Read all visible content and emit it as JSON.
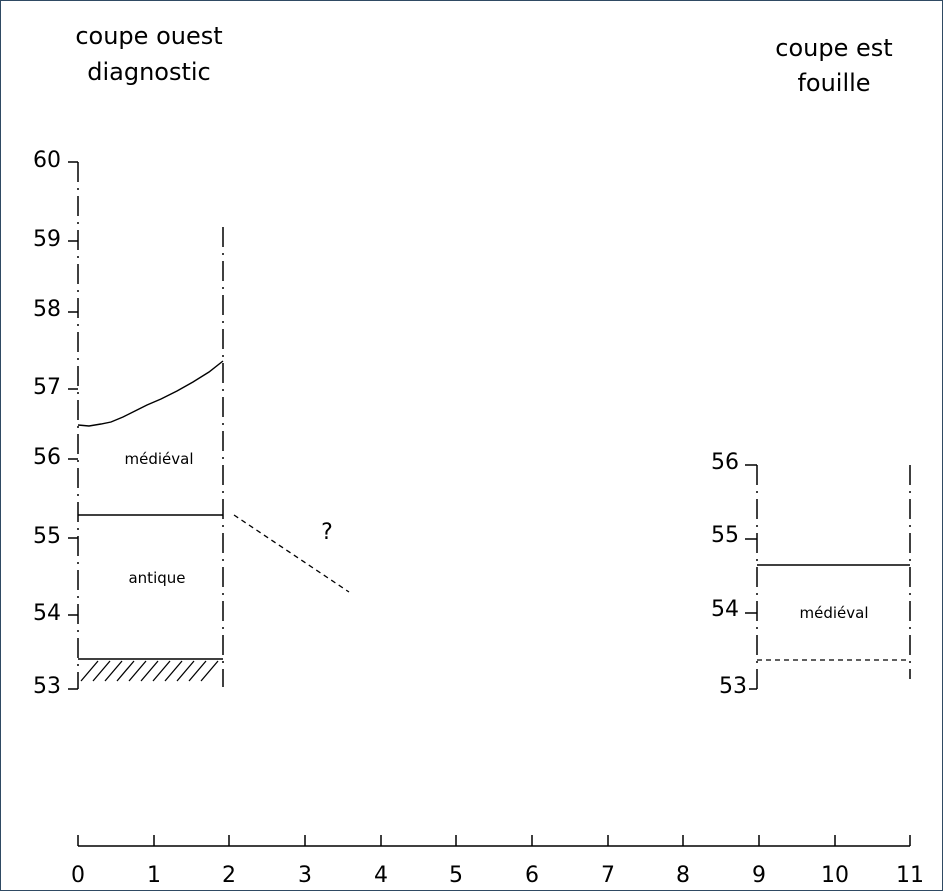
{
  "west_section": {
    "title_line1": "coupe ouest",
    "title_line2": "diagnostic",
    "elevation_ticks": [
      "60",
      "59",
      "58",
      "57",
      "56",
      "55",
      "54",
      "53"
    ],
    "layer_upper": "médiéval",
    "layer_lower": "antique"
  },
  "east_section": {
    "title_line1": "coupe est",
    "title_line2": "fouille",
    "elevation_ticks": [
      "56",
      "55",
      "54",
      "53"
    ],
    "layer": "médiéval"
  },
  "uncertain_marker": "?",
  "distance_axis": {
    "ticks": [
      "0",
      "1",
      "2",
      "3",
      "4",
      "5",
      "6",
      "7",
      "8",
      "9",
      "10",
      "11"
    ]
  }
}
